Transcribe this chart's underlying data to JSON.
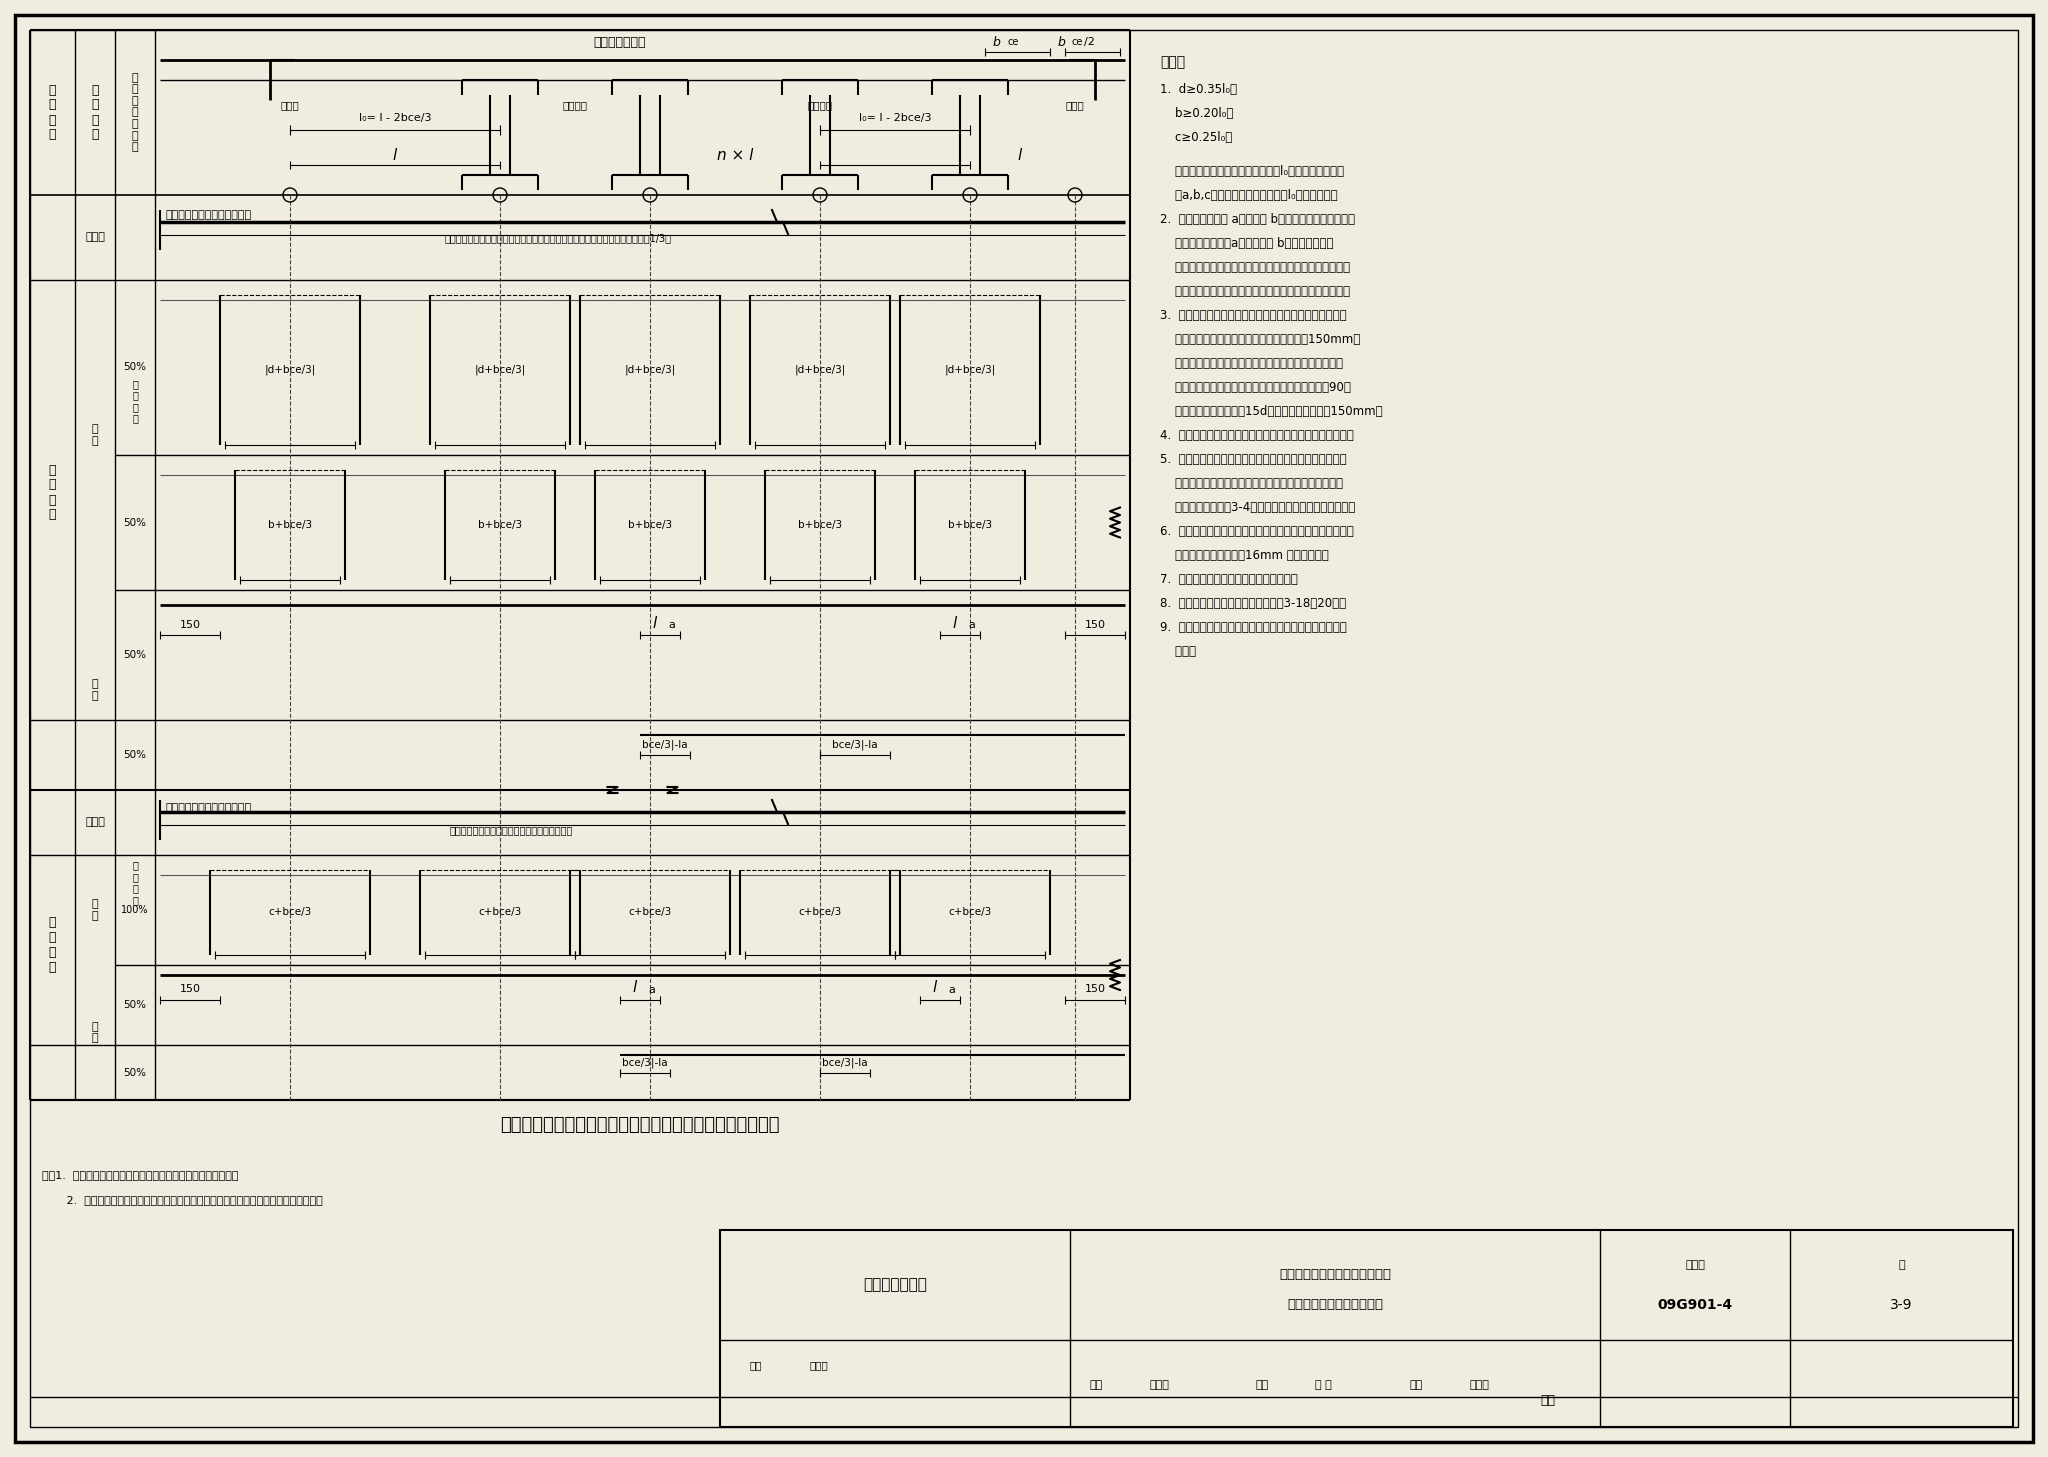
{
  "bg": "#f0ece0",
  "lc": "black",
  "notes": [
    "1.  d≥0.35l₀；",
    "    b≥0.20l₀；",
    "    c≥0.25l₀。",
    "",
    "    若某中间支坐左、右邻跨的净跨値l₀不相同，该支坐两",
    "    旁a,b,c値均应按两净跨中较大的l₀値计算确定。",
    "2.  非通长钉筋中的 a长度筋与 b长度筋间隔布置。非通长",
    "    钉筋总数为单数，a长度筋应比 b长度筋多一根。",
    "    各种板带底部伸入与不伸入支坐的钉筋间隔布置。底部筋",
    "    总数为单数，伸入支坐钉筋应比不伸入支坐钉筋多一根。",
    "3.  边跨板带底部钉筋伸入边棁、墙、柱内的锄固长度不仅",
    "    要满足具体设计値，且其水平段长度不小于150mm。",
    "    边跨板带顶部钉筋伸入边棁、墙、柱内的锄固长度不仅",
    "    要满足具体设计値，且应在板边缘横向钉筋外側做90度",
    "    弯折，其垂直段长度为15d；水平段长度不小于150mm。",
    "4.  边跨板带悬挠时，顶部钉筋应勾住板边缘横向通长钉筋。",
    "5.  边支坐有棁的无棁板，在外角顶部沿对角线方向和外角",
    "    底部垂直于对角线方向各增配满足具体设计要求的受力",
    "    钉筋（见本图集第3-4页；无棁楼盖板外角附加钉筋）。",
    "6.  当各边跨板带支坐间无棁时，应在板带外边缘的上、下部",
    "    各设置一根直径不小于16mm 的通长钉筋。",
    "7.  板的各方向底部应置于暗棁底筋之上。",
    "8.  柱上板带暗棁排布构造见本图集第3-18～20页。",
    "9.  本图所仅为板带分离式排布构造要求，实际配筋以设计",
    "    为准。"
  ]
}
